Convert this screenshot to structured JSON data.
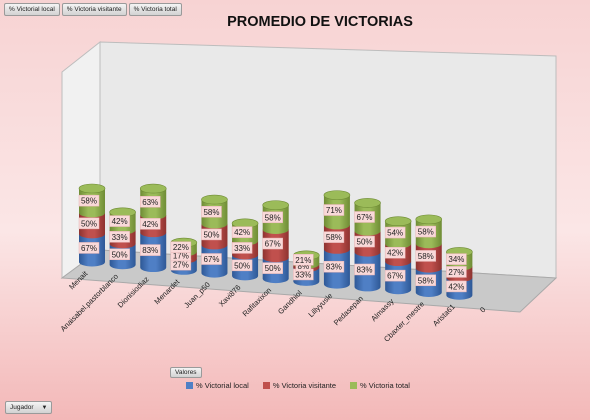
{
  "field_buttons": [
    "% Victorial local",
    "% Victoria visitante",
    "% Victoria total"
  ],
  "valores_label": "Valores",
  "filter": {
    "label": "Jugador",
    "arrow": "▼"
  },
  "colors": {
    "local": "#4f7fc5",
    "local_dark": "#2e5896",
    "visitante": "#c0504d",
    "visitante_dark": "#8e3330",
    "total": "#9bbb59",
    "total_dark": "#6f8c35",
    "wall": "#e9e9e9",
    "floor": "#c9c9c9",
    "label_bg": "#f9d9d9"
  },
  "chart_data": {
    "type": "bar",
    "stacked": true,
    "three_d": true,
    "shape": "cylinder",
    "title": "PROMEDIO DE VICTORIAS",
    "categories": [
      "Menait",
      "Anaisabel.pastorblanco",
      "Dionisiodiaz",
      "Menardet",
      "Juan_p50",
      "Xavi876",
      "Rafitaxixon",
      "Gandhiol",
      "Lillyyusle",
      "Pedasepan",
      "Almassy",
      "Cbaxter_mestre",
      "Arista61",
      "0"
    ],
    "series": [
      {
        "name": "% Victorial local",
        "values": [
          67,
          50,
          83,
          27,
          67,
          50,
          50,
          33,
          83,
          83,
          67,
          58,
          42,
          null
        ]
      },
      {
        "name": "% Victoria visitante",
        "values": [
          50,
          33,
          42,
          17,
          50,
          33,
          67,
          8,
          58,
          50,
          42,
          58,
          27,
          null
        ]
      },
      {
        "name": "% Victoria total",
        "values": [
          58,
          42,
          63,
          22,
          58,
          42,
          58,
          21,
          71,
          67,
          54,
          58,
          34,
          null
        ]
      }
    ],
    "value_suffix": "%",
    "legend_position": "bottom",
    "grid": false
  }
}
